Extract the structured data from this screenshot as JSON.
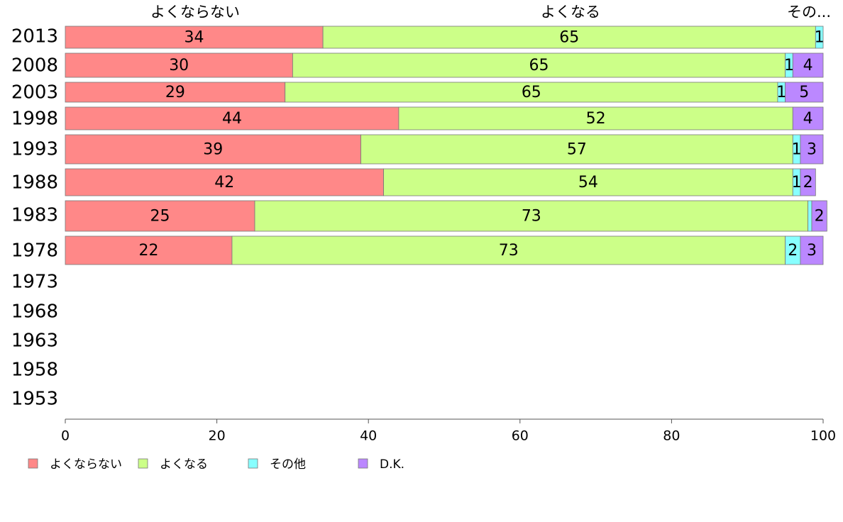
{
  "chart_data": {
    "type": "bar",
    "orientation": "horizontal",
    "stacked": true,
    "categories": [
      "2013",
      "2008",
      "2003",
      "1998",
      "1993",
      "1988",
      "1983",
      "1978",
      "1973",
      "1968",
      "1963",
      "1958",
      "1953"
    ],
    "series": [
      {
        "name": "よくならない",
        "color": "#ff8888",
        "values": [
          34,
          30,
          29,
          44,
          39,
          42,
          25,
          22,
          null,
          null,
          null,
          null,
          null
        ]
      },
      {
        "name": "よくなる",
        "color": "#ccff88",
        "values": [
          65,
          65,
          65,
          52,
          57,
          54,
          73,
          73,
          null,
          null,
          null,
          null,
          null
        ]
      },
      {
        "name": "その他",
        "color": "#88ffff",
        "values": [
          1,
          1,
          1,
          0,
          1,
          1,
          0.5,
          2,
          null,
          null,
          null,
          null,
          null
        ]
      },
      {
        "name": "D.K.",
        "color": "#bb88ff",
        "values": [
          0,
          4,
          5,
          4,
          3,
          2,
          2,
          3,
          null,
          null,
          null,
          null,
          null
        ]
      }
    ],
    "data_labels": [
      [
        "34",
        "30",
        "29",
        "44",
        "39",
        "42",
        "25",
        "22",
        "",
        "",
        "",
        "",
        ""
      ],
      [
        "65",
        "65",
        "65",
        "52",
        "57",
        "54",
        "73",
        "73",
        "",
        "",
        "",
        "",
        ""
      ],
      [
        "1",
        "1",
        "1",
        "",
        "1",
        "1",
        "",
        "2",
        "",
        "",
        "",
        "",
        ""
      ],
      [
        "",
        "4",
        "5",
        "4",
        "3",
        "2",
        "2",
        "3",
        "",
        "",
        "",
        "",
        ""
      ]
    ],
    "column_headers": [
      "よくならない",
      "よくなる",
      "その..."
    ],
    "xlim": [
      0,
      100
    ],
    "xticks": [
      0,
      20,
      40,
      60,
      80,
      100
    ],
    "legend_position": "bottom-left",
    "grid": false
  }
}
